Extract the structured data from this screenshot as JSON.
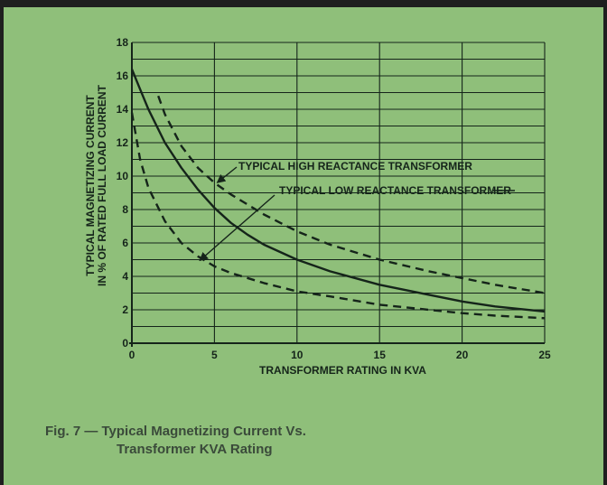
{
  "chart_data": {
    "type": "line",
    "xlabel": "TRANSFORMER RATING IN KVA",
    "ylabel_lines": [
      "TYPICAL MAGNETIZING CURRENT",
      "IN % OF RATED FULL LOAD CURRENT"
    ],
    "xlim": [
      0,
      25
    ],
    "ylim": [
      0,
      18
    ],
    "x_ticks": [
      0,
      5,
      10,
      15,
      20,
      25
    ],
    "y_ticks": [
      0,
      2,
      4,
      6,
      8,
      10,
      12,
      14,
      16,
      18
    ],
    "grid": true,
    "series": [
      {
        "role": "high-reactance",
        "style": "dashed",
        "x": [
          1.6,
          2,
          3,
          4,
          5,
          6,
          7,
          8,
          10,
          12,
          15,
          18,
          20,
          22,
          25
        ],
        "y": [
          14.8,
          13.7,
          11.8,
          10.5,
          9.6,
          8.9,
          8.3,
          7.7,
          6.7,
          5.9,
          5.0,
          4.3,
          3.9,
          3.5,
          3.0
        ]
      },
      {
        "role": "standard",
        "style": "solid",
        "x": [
          0,
          0.5,
          1,
          2,
          3,
          4,
          5,
          6,
          7,
          8,
          10,
          12,
          15,
          18,
          20,
          22,
          25
        ],
        "y": [
          16.4,
          15.2,
          14.0,
          12.0,
          10.5,
          9.2,
          8.1,
          7.2,
          6.5,
          5.9,
          5.0,
          4.3,
          3.5,
          2.9,
          2.5,
          2.2,
          1.9
        ]
      },
      {
        "role": "low-reactance",
        "style": "dashed",
        "x": [
          0,
          0.5,
          1,
          2,
          3,
          4,
          5,
          6,
          8,
          10,
          12,
          15,
          18,
          20,
          22,
          25
        ],
        "y": [
          13.8,
          11.0,
          9.3,
          7.3,
          6.0,
          5.2,
          4.6,
          4.2,
          3.6,
          3.1,
          2.8,
          2.3,
          2.0,
          1.8,
          1.65,
          1.5
        ]
      }
    ],
    "annotations": [
      {
        "text": "TYPICAL HIGH REACTANCE TRANSFORMER",
        "target_x": 5.0,
        "target_y": 9.5
      },
      {
        "text": "TYPICAL LOW REACTANCE TRANSFORMER",
        "target_x": 4.0,
        "target_y": 5.0
      }
    ]
  },
  "colors": {
    "background": "#8fbf7a",
    "ink": "#15241a",
    "frame": "#1f1f1f"
  },
  "caption": {
    "line1": "Fig. 7 — Typical Magnetizing Current Vs.",
    "line2": "Transformer KVA Rating"
  }
}
